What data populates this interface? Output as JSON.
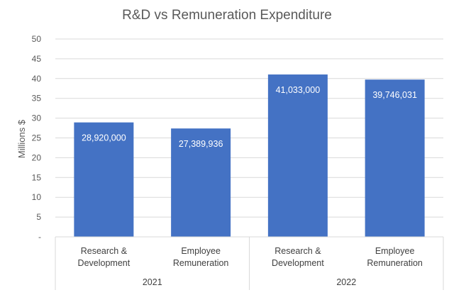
{
  "chart_data": {
    "type": "bar",
    "title": "R&D vs Remuneration Expenditure",
    "ylabel": "Millions $",
    "xlabel": "",
    "ylim": [
      0,
      50
    ],
    "y_ticks": [
      {
        "value": 0,
        "label": "-"
      },
      {
        "value": 5,
        "label": "5"
      },
      {
        "value": 10,
        "label": "10"
      },
      {
        "value": 15,
        "label": "15"
      },
      {
        "value": 20,
        "label": "20"
      },
      {
        "value": 25,
        "label": "25"
      },
      {
        "value": 30,
        "label": "30"
      },
      {
        "value": 35,
        "label": "35"
      },
      {
        "value": 40,
        "label": "40"
      },
      {
        "value": 45,
        "label": "45"
      },
      {
        "value": 50,
        "label": "50"
      }
    ],
    "grid": true,
    "bar_color": "#4472c4",
    "groups": [
      "2021",
      "2022"
    ],
    "categories": [
      {
        "group": "2021",
        "line1": "Research &",
        "line2": "Development",
        "value": 28.92,
        "label": "28,920,000"
      },
      {
        "group": "2021",
        "line1": "Employee",
        "line2": "Remuneration",
        "value": 27.389936,
        "label": "27,389,936"
      },
      {
        "group": "2022",
        "line1": "Research &",
        "line2": "Development",
        "value": 41.033,
        "label": "41,033,000"
      },
      {
        "group": "2022",
        "line1": "Employee",
        "line2": "Remuneration",
        "value": 39.746031,
        "label": "39,746,031"
      }
    ]
  }
}
